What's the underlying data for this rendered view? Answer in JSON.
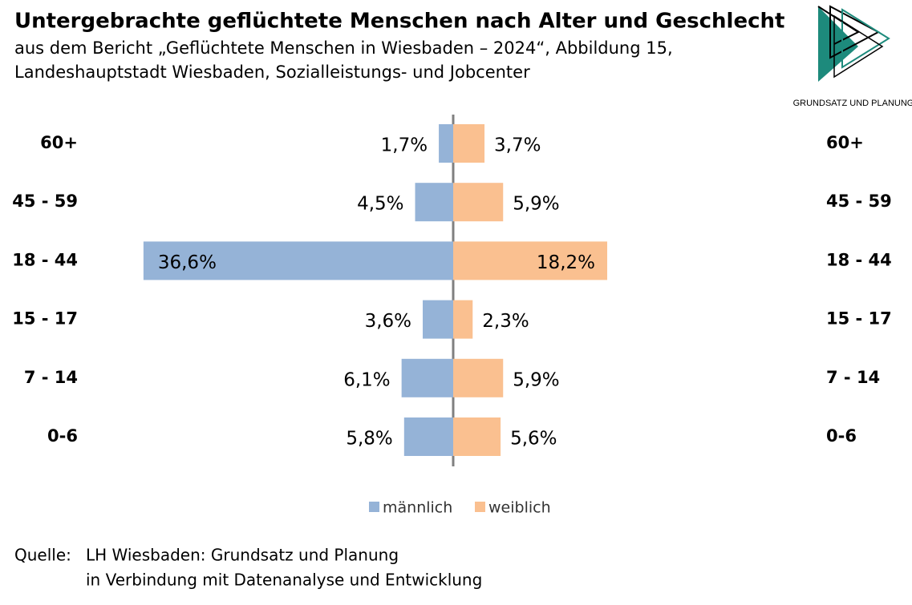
{
  "title": "Untergebrachte geflüchtete Menschen nach Alter und Geschlecht",
  "subtitle": [
    "aus dem Bericht „Geflüchtete Menschen in Wiesbaden – 2024“, Abbildung 15,",
    "Landeshauptstadt Wiesbaden, Sozialleistungs- und Jobcenter"
  ],
  "logo_text": "GRUNDSATZ UND PLANUNG",
  "chart_data": {
    "type": "pyramid",
    "categories": [
      "60+",
      "45 - 59",
      "18 - 44",
      "15 - 17",
      "7 - 14",
      "0-6"
    ],
    "series": [
      {
        "name": "männlich",
        "color": "#95b3d7",
        "values": [
          1.7,
          4.5,
          36.6,
          3.6,
          6.1,
          5.8
        ],
        "value_labels": [
          "1,7%",
          "4,5%",
          "36,6%",
          "3,6%",
          "6,1%",
          "5,8%"
        ]
      },
      {
        "name": "weiblich",
        "color": "#fac090",
        "values": [
          3.7,
          5.9,
          18.2,
          2.3,
          5.9,
          5.6
        ],
        "value_labels": [
          "3,7%",
          "5,9%",
          "18,2%",
          "2,3%",
          "5,9%",
          "5,6%"
        ]
      }
    ]
  },
  "source": {
    "label": "Quelle:",
    "lines": [
      "LH Wiesbaden: Grundsatz und Planung",
      "in Verbindung mit Datenanalyse und Entwicklung"
    ]
  }
}
